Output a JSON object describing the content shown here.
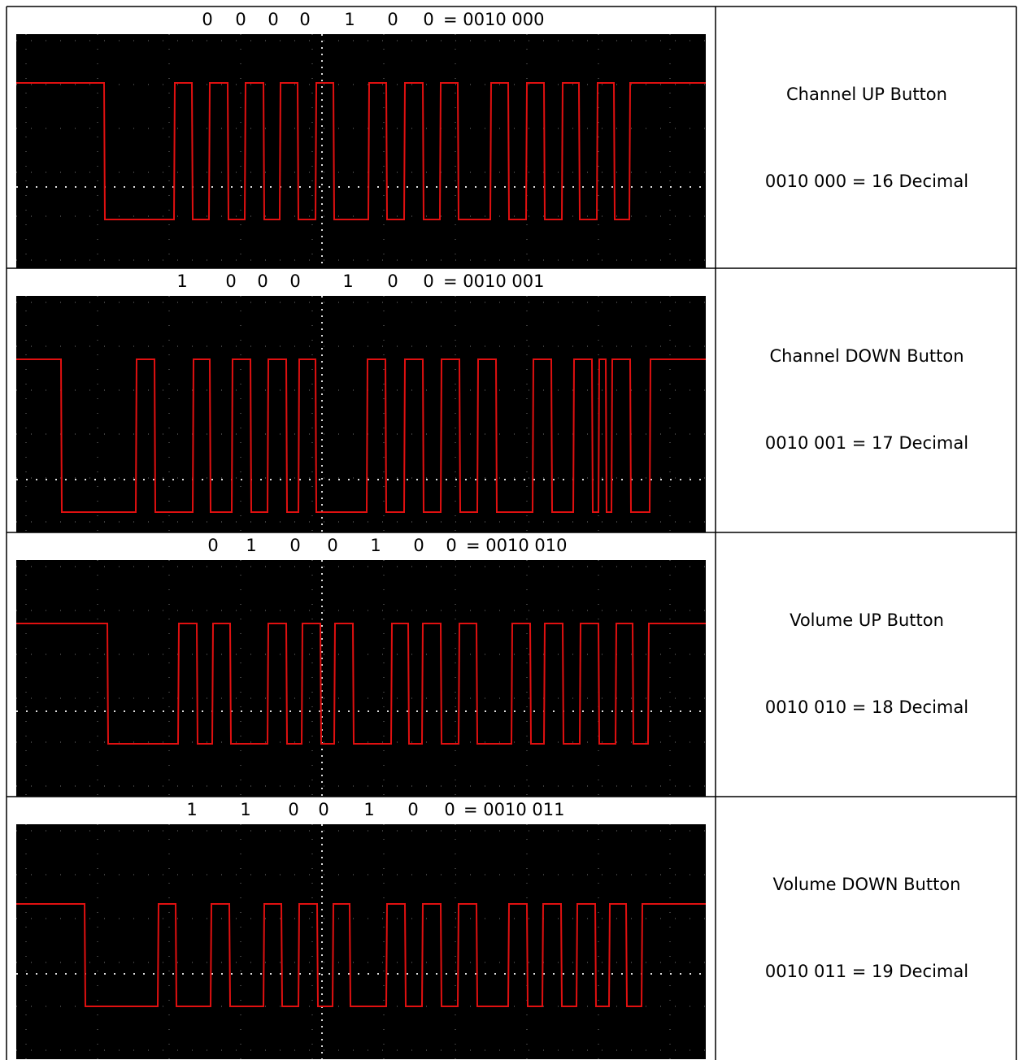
{
  "rows": [
    {
      "bits": [
        "0",
        "0",
        "0",
        "0",
        "1",
        "0",
        "0"
      ],
      "code": "= 0010 000",
      "button": "Channel UP Button",
      "decimal": "0010 000 = 16 Decimal"
    },
    {
      "bits": [
        "1",
        "0",
        "0",
        "0",
        "1",
        "0",
        "0"
      ],
      "code": "= 0010 001",
      "button": "Channel DOWN Button",
      "decimal": "0010 001 = 17 Decimal"
    },
    {
      "bits": [
        "0",
        "1",
        "0",
        "0",
        "1",
        "0",
        "0"
      ],
      "code": "= 0010 010",
      "button": "Volume UP Button",
      "decimal": "0010 010 = 18 Decimal"
    },
    {
      "bits": [
        "1",
        "1",
        "0",
        "0",
        "1",
        "0",
        "0"
      ],
      "code": "= 0010 011",
      "button": "Volume DOWN Button",
      "decimal": "0010 011 = 19 Decimal"
    }
  ]
}
